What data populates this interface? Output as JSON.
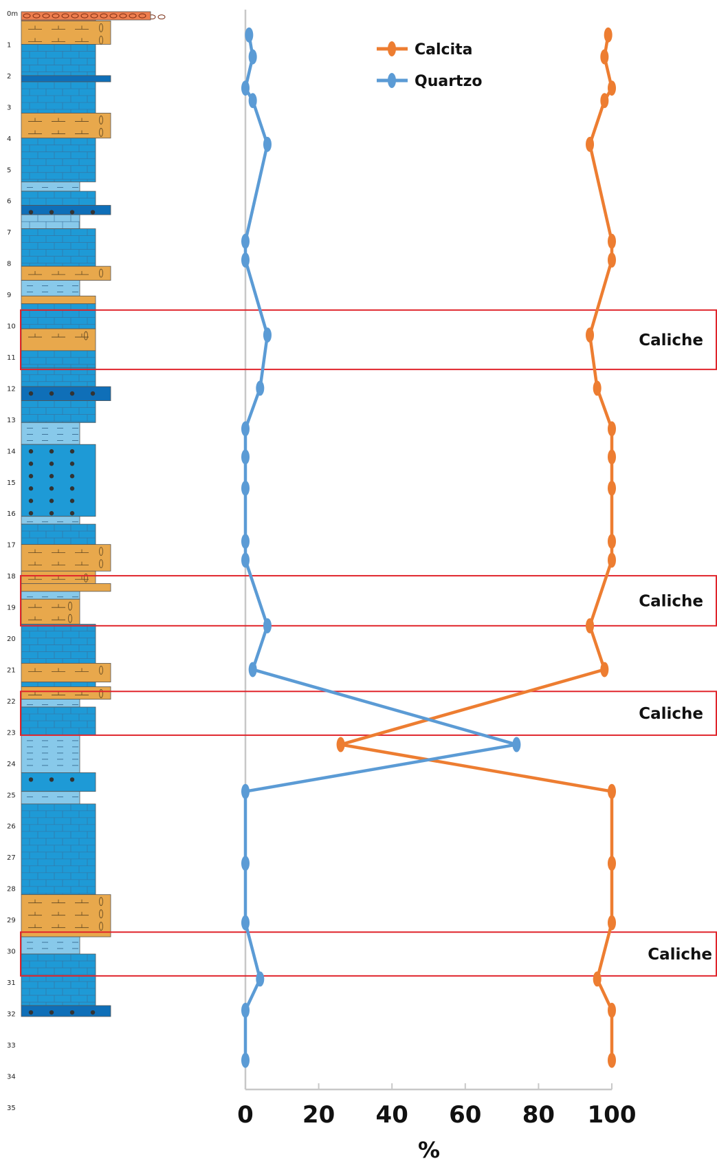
{
  "chart_data": {
    "type": "line",
    "xlabel": "%",
    "xlim": [
      0,
      100
    ],
    "x_ticks": [
      "0",
      "20",
      "40",
      "60",
      "80",
      "100"
    ],
    "depth_unit": "m",
    "depth_labels": [
      "0m",
      "1",
      "2",
      "3",
      "4",
      "5",
      "6",
      "7",
      "8",
      "9",
      "10",
      "11",
      "12",
      "13",
      "14",
      "15",
      "16",
      "17",
      "18",
      "19",
      "20",
      "21",
      "22",
      "23",
      "24",
      "25",
      "26",
      "27",
      "28",
      "29",
      "30",
      "31",
      "32",
      "33",
      "34",
      "35"
    ],
    "legend_position": "top-center",
    "series": [
      {
        "name": "Calcita",
        "color": "#ED7D31",
        "points": [
          {
            "depth": 0.7,
            "value": 99
          },
          {
            "depth": 1.4,
            "value": 98
          },
          {
            "depth": 2.4,
            "value": 100
          },
          {
            "depth": 2.8,
            "value": 98
          },
          {
            "depth": 4.2,
            "value": 94
          },
          {
            "depth": 7.3,
            "value": 100
          },
          {
            "depth": 7.9,
            "value": 100
          },
          {
            "depth": 10.3,
            "value": 94
          },
          {
            "depth": 12.0,
            "value": 96
          },
          {
            "depth": 13.3,
            "value": 100
          },
          {
            "depth": 14.2,
            "value": 100
          },
          {
            "depth": 15.2,
            "value": 100
          },
          {
            "depth": 16.9,
            "value": 100
          },
          {
            "depth": 17.5,
            "value": 100
          },
          {
            "depth": 19.6,
            "value": 94
          },
          {
            "depth": 21.0,
            "value": 98
          },
          {
            "depth": 23.4,
            "value": 26
          },
          {
            "depth": 24.9,
            "value": 100
          },
          {
            "depth": 27.2,
            "value": 100
          },
          {
            "depth": 29.1,
            "value": 100
          },
          {
            "depth": 30.9,
            "value": 96
          },
          {
            "depth": 31.9,
            "value": 100
          },
          {
            "depth": 33.5,
            "value": 100
          }
        ]
      },
      {
        "name": "Quartzo",
        "color": "#5B9BD5",
        "points": [
          {
            "depth": 0.7,
            "value": 1
          },
          {
            "depth": 1.4,
            "value": 2
          },
          {
            "depth": 2.4,
            "value": 0
          },
          {
            "depth": 2.8,
            "value": 2
          },
          {
            "depth": 4.2,
            "value": 6
          },
          {
            "depth": 7.3,
            "value": 0
          },
          {
            "depth": 7.9,
            "value": 0
          },
          {
            "depth": 10.3,
            "value": 6
          },
          {
            "depth": 12.0,
            "value": 4
          },
          {
            "depth": 13.3,
            "value": 0
          },
          {
            "depth": 14.2,
            "value": 0
          },
          {
            "depth": 15.2,
            "value": 0
          },
          {
            "depth": 16.9,
            "value": 0
          },
          {
            "depth": 17.5,
            "value": 0
          },
          {
            "depth": 19.6,
            "value": 6
          },
          {
            "depth": 21.0,
            "value": 2
          },
          {
            "depth": 23.4,
            "value": 74
          },
          {
            "depth": 24.9,
            "value": 0
          },
          {
            "depth": 27.2,
            "value": 0
          },
          {
            "depth": 29.1,
            "value": 0
          },
          {
            "depth": 30.9,
            "value": 4
          },
          {
            "depth": 31.9,
            "value": 0
          },
          {
            "depth": 33.5,
            "value": 0
          }
        ]
      }
    ],
    "zones": [
      {
        "label": "Caliche",
        "top": 9.5,
        "bottom": 11.4
      },
      {
        "label": "Caliche",
        "top": 18.0,
        "bottom": 19.6
      },
      {
        "label": "Caliche",
        "top": 21.7,
        "bottom": 23.1
      },
      {
        "label": "Caliche",
        "top": 29.4,
        "bottom": 30.8
      }
    ],
    "zone_color": "#E0242B"
  }
}
